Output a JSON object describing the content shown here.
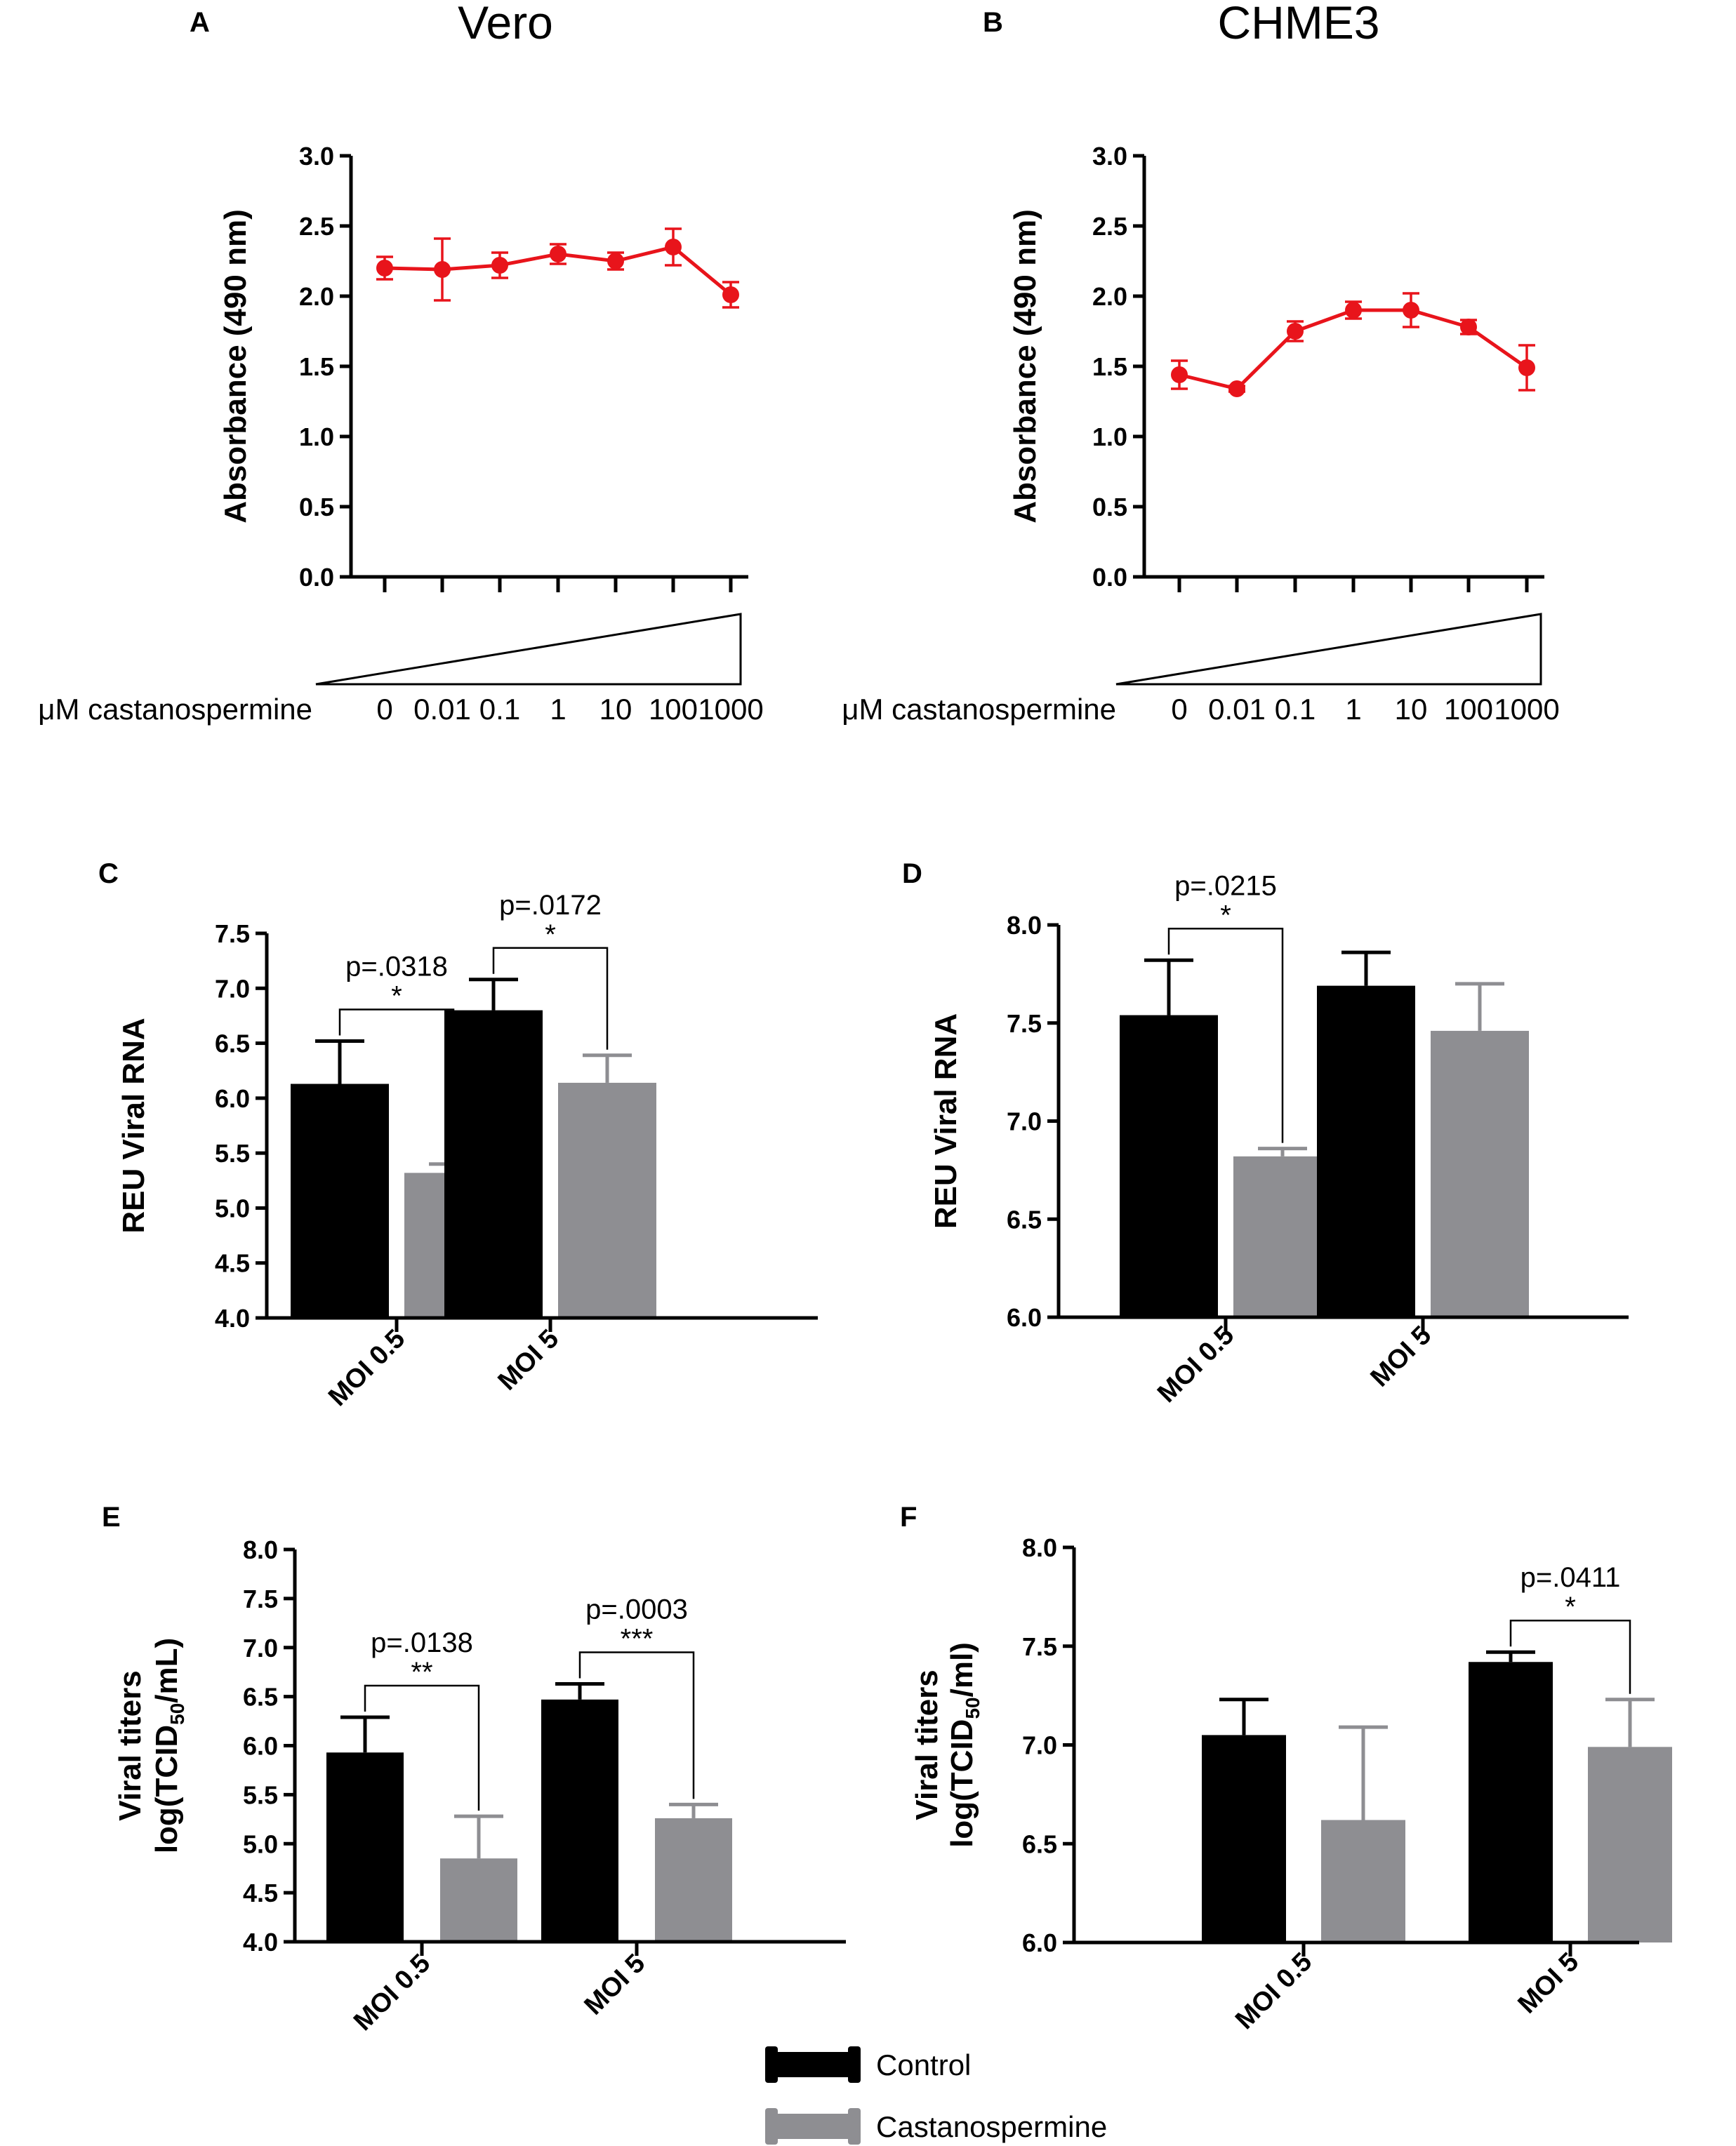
{
  "colors": {
    "line_series": "#e8141b",
    "control_bar": "#000000",
    "treatment_bar": "#8e8e92",
    "axis": "#000000"
  },
  "legend": {
    "control": "Control",
    "treatment": "Castanospermine"
  },
  "concentration_axis_label": "μM castanospermine",
  "chart_data": [
    {
      "panel": "A",
      "type": "line",
      "title": "Vero",
      "ylabel": "Absorbance (490 nm)",
      "xlabel": "μM castanospermine",
      "ylim": [
        0,
        3
      ],
      "yticks": [
        "0.0",
        "0.5",
        "1.0",
        "1.5",
        "2.0",
        "2.5",
        "3.0"
      ],
      "categories": [
        "0",
        "0.01",
        "0.1",
        "1",
        "10",
        "100",
        "1000"
      ],
      "values": [
        2.2,
        2.19,
        2.22,
        2.3,
        2.25,
        2.35,
        2.01
      ],
      "errors": [
        0.08,
        0.22,
        0.09,
        0.07,
        0.06,
        0.13,
        0.09
      ]
    },
    {
      "panel": "B",
      "type": "line",
      "title": "CHME3",
      "ylabel": "Absorbance (490 nm)",
      "xlabel": "μM castanospermine",
      "ylim": [
        0,
        3
      ],
      "yticks": [
        "0.0",
        "0.5",
        "1.0",
        "1.5",
        "2.0",
        "2.5",
        "3.0"
      ],
      "categories": [
        "0",
        "0.01",
        "0.1",
        "1",
        "10",
        "100",
        "1000"
      ],
      "values": [
        1.44,
        1.34,
        1.75,
        1.9,
        1.9,
        1.78,
        1.49
      ],
      "errors": [
        0.1,
        0.02,
        0.07,
        0.06,
        0.12,
        0.05,
        0.16
      ]
    },
    {
      "panel": "C",
      "type": "bar",
      "title": "",
      "ylabel": "REU Viral RNA",
      "ylim": [
        4,
        7.5
      ],
      "yticks": [
        "4.0",
        "4.5",
        "5.0",
        "5.5",
        "6.0",
        "6.5",
        "7.0",
        "7.5"
      ],
      "categories": [
        "MOI 0.5",
        "MOI 5"
      ],
      "series": [
        {
          "name": "Control",
          "values": [
            6.13,
            6.8
          ],
          "errors": [
            0.39,
            0.28
          ]
        },
        {
          "name": "Castanospermine",
          "values": [
            5.32,
            6.14
          ],
          "errors": [
            0.08,
            0.25
          ]
        }
      ],
      "annotations": [
        {
          "group": 0,
          "pvalue": "p=.0318",
          "stars": "*"
        },
        {
          "group": 1,
          "pvalue": "p=.0172",
          "stars": "*"
        }
      ]
    },
    {
      "panel": "D",
      "type": "bar",
      "title": "",
      "ylabel": "REU Viral RNA",
      "ylim": [
        6,
        8
      ],
      "yticks": [
        "6.0",
        "6.5",
        "7.0",
        "7.5",
        "8.0"
      ],
      "categories": [
        "MOI 0.5",
        "MOI 5"
      ],
      "series": [
        {
          "name": "Control",
          "values": [
            7.54,
            7.69
          ],
          "errors": [
            0.28,
            0.17
          ]
        },
        {
          "name": "Castanospermine",
          "values": [
            6.82,
            7.46
          ],
          "errors": [
            0.04,
            0.24
          ]
        }
      ],
      "annotations": [
        {
          "group": 0,
          "pvalue": "p=.0215",
          "stars": "*"
        }
      ]
    },
    {
      "panel": "E",
      "type": "bar",
      "title": "",
      "ylabel": "Viral titers log(TCID50/mL)",
      "ylabel_lines": [
        "Viral titers",
        "log(TCID",
        "50",
        "/mL)"
      ],
      "ylim": [
        4,
        8
      ],
      "yticks": [
        "4.0",
        "4.5",
        "5.0",
        "5.5",
        "6.0",
        "6.5",
        "7.0",
        "7.5",
        "8.0"
      ],
      "categories": [
        "MOI 0.5",
        "MOI 5"
      ],
      "series": [
        {
          "name": "Control",
          "values": [
            5.93,
            6.47
          ],
          "errors": [
            0.36,
            0.16
          ]
        },
        {
          "name": "Castanospermine",
          "values": [
            4.85,
            5.26
          ],
          "errors": [
            0.43,
            0.14
          ]
        }
      ],
      "annotations": [
        {
          "group": 0,
          "pvalue": "p=.0138",
          "stars": "**"
        },
        {
          "group": 1,
          "pvalue": "p=.0003",
          "stars": "***"
        }
      ]
    },
    {
      "panel": "F",
      "type": "bar",
      "title": "",
      "ylabel": "Viral titers log(TCID50/ml)",
      "ylabel_lines": [
        "Viral titers",
        "log(TCID",
        "50",
        "/ml)"
      ],
      "ylim": [
        6,
        8
      ],
      "yticks": [
        "6.0",
        "6.5",
        "7.0",
        "7.5",
        "8.0"
      ],
      "categories": [
        "MOI 0.5",
        "MOI 5"
      ],
      "series": [
        {
          "name": "Control",
          "values": [
            7.05,
            7.42
          ],
          "errors": [
            0.18,
            0.05
          ]
        },
        {
          "name": "Castanospermine",
          "values": [
            6.62,
            6.99
          ],
          "errors": [
            0.47,
            0.24
          ]
        }
      ],
      "annotations": [
        {
          "group": 1,
          "pvalue": "p=.0411",
          "stars": "*"
        }
      ]
    }
  ]
}
